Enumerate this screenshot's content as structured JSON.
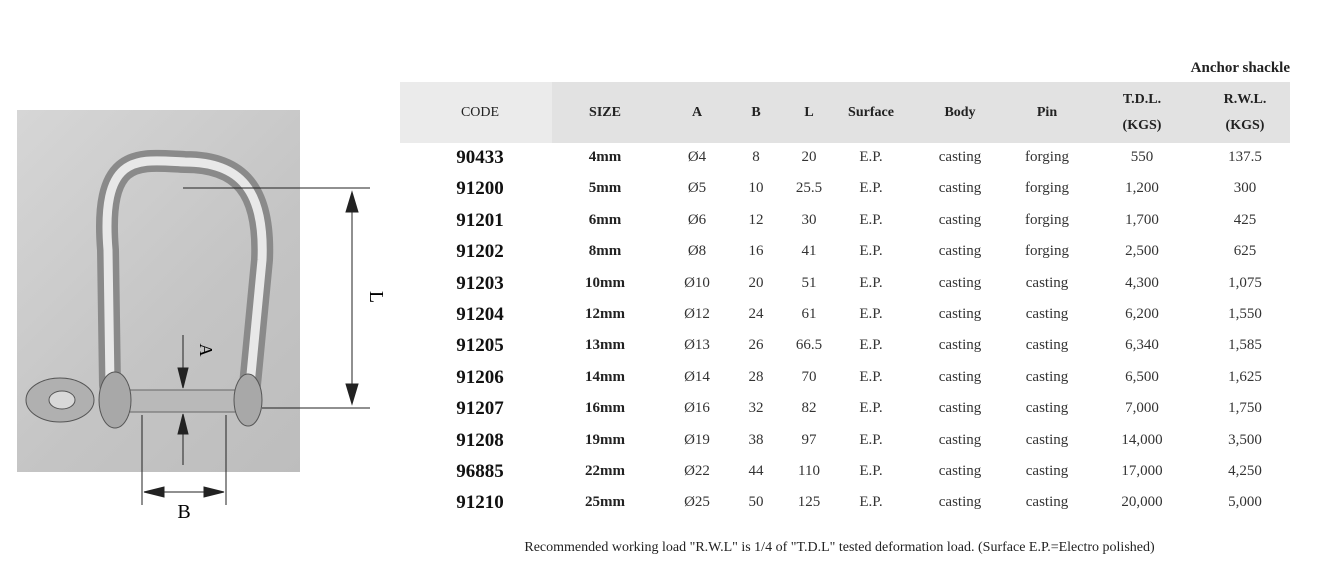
{
  "title": "Anchor shackle",
  "diagram": {
    "label_l": "L",
    "label_a": "A",
    "label_b": "B"
  },
  "columns": [
    {
      "key": "code",
      "label": "CODE",
      "bold": false
    },
    {
      "key": "size",
      "label": "SIZE",
      "bold": true
    },
    {
      "key": "a",
      "label": "A",
      "bold": true
    },
    {
      "key": "b",
      "label": "B",
      "bold": true
    },
    {
      "key": "l",
      "label": "L",
      "bold": true
    },
    {
      "key": "surface",
      "label": "Surface",
      "bold": true
    },
    {
      "key": "body",
      "label": "Body",
      "bold": true
    },
    {
      "key": "pin",
      "label": "Pin",
      "bold": true
    },
    {
      "key": "tdl",
      "label": "T.D.L.",
      "sub": "(KGS)",
      "bold": true
    },
    {
      "key": "rwl",
      "label": "R.W.L.",
      "sub": "(KGS)",
      "bold": true
    }
  ],
  "rows": [
    {
      "code": "90433",
      "size": "4mm",
      "a": "Ø4",
      "b": "8",
      "l": "20",
      "surface": "E.P.",
      "body": "casting",
      "pin": "forging",
      "tdl": "550",
      "rwl": "137.5"
    },
    {
      "code": "91200",
      "size": "5mm",
      "a": "Ø5",
      "b": "10",
      "l": "25.5",
      "surface": "E.P.",
      "body": "casting",
      "pin": "forging",
      "tdl": "1,200",
      "rwl": "300"
    },
    {
      "code": "91201",
      "size": "6mm",
      "a": "Ø6",
      "b": "12",
      "l": "30",
      "surface": "E.P.",
      "body": "casting",
      "pin": "forging",
      "tdl": "1,700",
      "rwl": "425"
    },
    {
      "code": "91202",
      "size": "8mm",
      "a": "Ø8",
      "b": "16",
      "l": "41",
      "surface": "E.P.",
      "body": "casting",
      "pin": "forging",
      "tdl": "2,500",
      "rwl": "625"
    },
    {
      "code": "91203",
      "size": "10mm",
      "a": "Ø10",
      "b": "20",
      "l": "51",
      "surface": "E.P.",
      "body": "casting",
      "pin": "casting",
      "tdl": "4,300",
      "rwl": "1,075"
    },
    {
      "code": "91204",
      "size": "12mm",
      "a": "Ø12",
      "b": "24",
      "l": "61",
      "surface": "E.P.",
      "body": "casting",
      "pin": "casting",
      "tdl": "6,200",
      "rwl": "1,550"
    },
    {
      "code": "91205",
      "size": "13mm",
      "a": "Ø13",
      "b": "26",
      "l": "66.5",
      "surface": "E.P.",
      "body": "casting",
      "pin": "casting",
      "tdl": "6,340",
      "rwl": "1,585"
    },
    {
      "code": "91206",
      "size": "14mm",
      "a": "Ø14",
      "b": "28",
      "l": "70",
      "surface": "E.P.",
      "body": "casting",
      "pin": "casting",
      "tdl": "6,500",
      "rwl": "1,625"
    },
    {
      "code": "91207",
      "size": "16mm",
      "a": "Ø16",
      "b": "32",
      "l": "82",
      "surface": "E.P.",
      "body": "casting",
      "pin": "casting",
      "tdl": "7,000",
      "rwl": "1,750"
    },
    {
      "code": "91208",
      "size": "19mm",
      "a": "Ø19",
      "b": "38",
      "l": "97",
      "surface": "E.P.",
      "body": "casting",
      "pin": "casting",
      "tdl": "14,000",
      "rwl": "3,500"
    },
    {
      "code": "96885",
      "size": "22mm",
      "a": "Ø22",
      "b": "44",
      "l": "110",
      "surface": "E.P.",
      "body": "casting",
      "pin": "casting",
      "tdl": "17,000",
      "rwl": "4,250"
    },
    {
      "code": "91210",
      "size": "25mm",
      "a": "Ø25",
      "b": "50",
      "l": "125",
      "surface": "E.P.",
      "body": "casting",
      "pin": "casting",
      "tdl": "20,000",
      "rwl": "5,000"
    }
  ],
  "footnote": "Recommended working load \"R.W.L\" is 1/4 of \"T.D.L\" tested deformation load. (Surface E.P.=Electro polished)"
}
